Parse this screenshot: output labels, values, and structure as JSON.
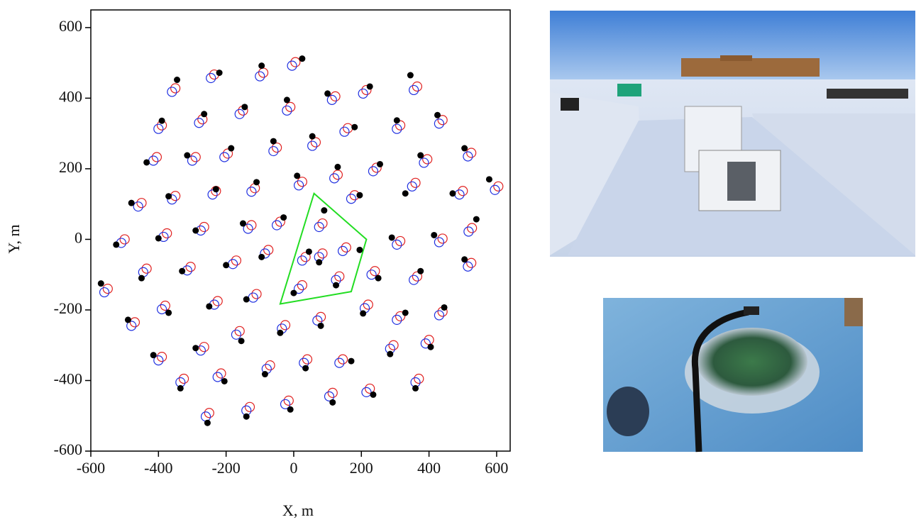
{
  "chart_data": {
    "type": "scatter",
    "x_label": "X, m",
    "y_label": "Y, m",
    "xlim": [
      -600,
      640
    ],
    "ylim": [
      -600,
      650
    ],
    "xticks": [
      -600,
      -400,
      -200,
      0,
      200,
      400,
      600
    ],
    "yticks": [
      -600,
      -400,
      -200,
      0,
      200,
      400,
      600
    ],
    "series": [
      {
        "color": "#e02020",
        "marker": "open-circle",
        "x": [
          -350,
          -235,
          -90,
          5,
          365,
          -390,
          -270,
          -150,
          -10,
          123,
          215,
          315,
          440,
          -405,
          -290,
          -195,
          -50,
          65,
          160,
          245,
          395,
          525,
          -350,
          -230,
          -115,
          25,
          130,
          180,
          360,
          500,
          605,
          -450,
          -375,
          -265,
          -125,
          -40,
          85,
          315,
          440,
          527,
          525,
          -500,
          -550,
          35,
          85,
          25,
          135,
          -110,
          -75,
          -170,
          -305,
          -435,
          155,
          240,
          365,
          -380,
          -225,
          -470,
          -25,
          80,
          220,
          315,
          440,
          -390,
          -265,
          -160,
          -70,
          40,
          145,
          295,
          400,
          -215,
          -325,
          115,
          225,
          370,
          -250,
          -130,
          -15
        ],
        "y": [
          428,
          467,
          472,
          502,
          433,
          323,
          340,
          365,
          375,
          405,
          423,
          323,
          338,
          233,
          233,
          243,
          260,
          275,
          315,
          203,
          227,
          245,
          123,
          137,
          145,
          163,
          183,
          125,
          160,
          137,
          150,
          103,
          17,
          35,
          40,
          50,
          45,
          -5,
          2,
          32,
          -67,
          0,
          -140,
          -50,
          -40,
          -130,
          -105,
          -155,
          -30,
          -60,
          -78,
          -83,
          -23,
          -90,
          -105,
          -188,
          -175,
          -235,
          -243,
          -220,
          -185,
          -218,
          -205,
          -333,
          -305,
          -260,
          -357,
          -340,
          -340,
          -300,
          -285,
          -380,
          -395,
          -435,
          -423,
          -395,
          -492,
          -475,
          -457
        ]
      },
      {
        "color": "#2030e0",
        "marker": "open-circle",
        "x": [
          -360,
          -245,
          -100,
          -5,
          355,
          -400,
          -280,
          -160,
          -20,
          113,
          205,
          305,
          430,
          -415,
          -300,
          -205,
          -60,
          55,
          150,
          235,
          385,
          515,
          -360,
          -240,
          -125,
          15,
          120,
          170,
          350,
          490,
          595,
          -460,
          -385,
          -275,
          -135,
          -50,
          75,
          305,
          430,
          517,
          515,
          -510,
          -560,
          25,
          75,
          15,
          125,
          -120,
          -85,
          -180,
          -315,
          -445,
          145,
          230,
          355,
          -390,
          -235,
          -480,
          -35,
          70,
          210,
          305,
          430,
          -400,
          -275,
          -170,
          -80,
          30,
          135,
          285,
          390,
          -225,
          -335,
          105,
          215,
          360,
          -260,
          -140,
          -25
        ],
        "y": [
          418,
          457,
          462,
          492,
          423,
          313,
          330,
          355,
          365,
          395,
          413,
          313,
          328,
          223,
          223,
          233,
          250,
          265,
          305,
          193,
          217,
          235,
          113,
          127,
          135,
          153,
          173,
          115,
          150,
          127,
          140,
          93,
          7,
          25,
          30,
          40,
          35,
          -15,
          -8,
          22,
          -77,
          -10,
          -150,
          -60,
          -50,
          -140,
          -115,
          -165,
          -40,
          -70,
          -88,
          -93,
          -33,
          -100,
          -115,
          -198,
          -185,
          -245,
          -253,
          -230,
          -195,
          -228,
          -215,
          -343,
          -315,
          -270,
          -367,
          -350,
          -350,
          -310,
          -295,
          -390,
          -405,
          -445,
          -433,
          -405,
          -502,
          -485,
          -467
        ]
      },
      {
        "color": "#000000",
        "marker": "dot",
        "x": [
          -345,
          -220,
          -95,
          25,
          345,
          -390,
          -265,
          -145,
          -20,
          100,
          225,
          305,
          425,
          -435,
          -315,
          -185,
          -60,
          55,
          180,
          255,
          375,
          505,
          -370,
          -230,
          -110,
          10,
          130,
          195,
          330,
          470,
          578,
          -480,
          -400,
          -290,
          -150,
          -30,
          90,
          290,
          415,
          540,
          505,
          -525,
          -570,
          45,
          75,
          0,
          125,
          -140,
          -95,
          -200,
          -330,
          -450,
          195,
          250,
          375,
          -370,
          -250,
          -490,
          -40,
          80,
          205,
          330,
          445,
          -415,
          -290,
          -155,
          -85,
          35,
          170,
          285,
          405,
          -205,
          -335,
          115,
          235,
          360,
          -255,
          -140,
          -10
        ],
        "y": [
          452,
          472,
          492,
          512,
          465,
          336,
          355,
          375,
          395,
          413,
          433,
          337,
          352,
          218,
          238,
          258,
          278,
          292,
          318,
          213,
          238,
          258,
          122,
          142,
          162,
          180,
          205,
          125,
          130,
          130,
          170,
          103,
          3,
          25,
          45,
          62,
          82,
          5,
          12,
          57,
          -57,
          -15,
          -125,
          -35,
          -65,
          -152,
          -130,
          -170,
          -50,
          -73,
          -90,
          -110,
          -30,
          -110,
          -90,
          -208,
          -190,
          -228,
          -265,
          -245,
          -210,
          -208,
          -193,
          -328,
          -308,
          -288,
          -382,
          -365,
          -345,
          -325,
          -305,
          -402,
          -422,
          -462,
          -440,
          -422,
          -520,
          -502,
          -482
        ]
      }
    ],
    "polygon": {
      "color": "#22dd22",
      "x": [
        60,
        215,
        170,
        -40
      ],
      "y": [
        130,
        0,
        -148,
        -183
      ]
    }
  }
}
